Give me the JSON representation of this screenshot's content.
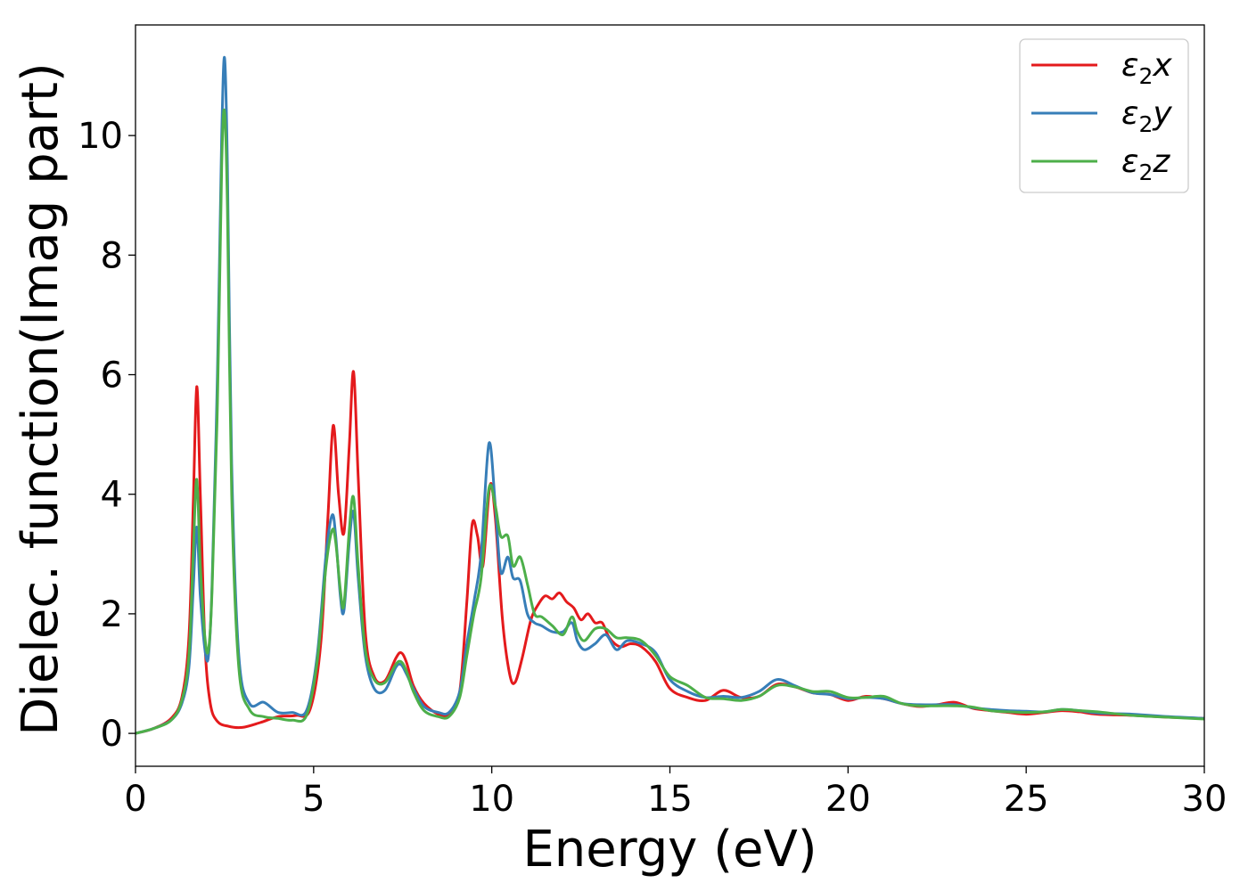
{
  "chart_data": {
    "type": "line",
    "title": "",
    "xlabel": "Energy (eV)",
    "ylabel": "Dielec. function(Imag part)",
    "xlim": [
      0,
      30
    ],
    "ylim": [
      -0.55,
      11.85
    ],
    "xticks": [
      0,
      5,
      10,
      15,
      20,
      25,
      30
    ],
    "yticks": [
      0,
      2,
      4,
      6,
      8,
      10
    ],
    "xtick_labels": [
      "0",
      "5",
      "10",
      "15",
      "20",
      "25",
      "30"
    ],
    "ytick_labels": [
      "0",
      "2",
      "4",
      "6",
      "8",
      "10"
    ],
    "grid": false,
    "legend": "top-right",
    "series": [
      {
        "name": "ε₂x",
        "legend_base": "ε",
        "legend_sub": "2",
        "legend_suffix": "x",
        "color": "#e41a1c",
        "x": [
          0,
          0.5,
          1.0,
          1.3,
          1.5,
          1.62,
          1.72,
          1.82,
          1.95,
          2.1,
          2.3,
          2.6,
          3.0,
          3.5,
          4.0,
          4.5,
          4.9,
          5.2,
          5.4,
          5.55,
          5.7,
          5.85,
          6.0,
          6.12,
          6.25,
          6.45,
          6.7,
          7.0,
          7.3,
          7.45,
          7.6,
          7.8,
          8.1,
          8.5,
          8.8,
          9.1,
          9.3,
          9.45,
          9.6,
          9.75,
          9.95,
          10.1,
          10.3,
          10.5,
          10.65,
          10.85,
          11.1,
          11.3,
          11.5,
          11.7,
          11.9,
          12.1,
          12.3,
          12.5,
          12.7,
          12.9,
          13.1,
          13.3,
          13.6,
          13.9,
          14.2,
          14.6,
          15.0,
          15.5,
          16.0,
          16.5,
          17.0,
          17.5,
          18.0,
          18.5,
          19.0,
          19.5,
          20.0,
          20.5,
          21.0,
          21.5,
          22.0,
          22.5,
          23.0,
          23.5,
          24.0,
          24.5,
          25.0,
          25.5,
          26.0,
          26.5,
          27.0,
          28.0,
          29.0,
          30.0
        ],
        "y": [
          0,
          0.08,
          0.25,
          0.6,
          1.6,
          3.8,
          5.8,
          4.0,
          1.5,
          0.5,
          0.2,
          0.12,
          0.1,
          0.18,
          0.28,
          0.3,
          0.4,
          1.5,
          3.6,
          5.15,
          4.0,
          3.35,
          4.8,
          6.05,
          4.3,
          1.7,
          0.95,
          0.88,
          1.25,
          1.35,
          1.2,
          0.8,
          0.5,
          0.32,
          0.32,
          0.7,
          2.2,
          3.5,
          3.3,
          2.8,
          4.15,
          3.6,
          1.9,
          1.0,
          0.85,
          1.25,
          1.9,
          2.15,
          2.3,
          2.25,
          2.35,
          2.2,
          2.1,
          1.9,
          2.0,
          1.85,
          1.85,
          1.6,
          1.45,
          1.5,
          1.45,
          1.2,
          0.75,
          0.6,
          0.55,
          0.72,
          0.6,
          0.62,
          0.82,
          0.78,
          0.68,
          0.65,
          0.55,
          0.62,
          0.58,
          0.5,
          0.45,
          0.48,
          0.52,
          0.42,
          0.38,
          0.35,
          0.32,
          0.35,
          0.38,
          0.36,
          0.32,
          0.3,
          0.27,
          0.25
        ]
      },
      {
        "name": "ε₂y",
        "legend_base": "ε",
        "legend_sub": "2",
        "legend_suffix": "y",
        "color": "#377eb8",
        "x": [
          0,
          0.5,
          1.0,
          1.3,
          1.5,
          1.62,
          1.72,
          1.82,
          1.95,
          2.05,
          2.15,
          2.3,
          2.42,
          2.5,
          2.58,
          2.7,
          2.9,
          3.2,
          3.6,
          4.0,
          4.4,
          4.8,
          5.1,
          5.35,
          5.52,
          5.62,
          5.75,
          5.85,
          6.0,
          6.12,
          6.25,
          6.45,
          6.7,
          7.0,
          7.3,
          7.45,
          7.6,
          7.8,
          8.1,
          8.5,
          8.8,
          9.1,
          9.3,
          9.5,
          9.7,
          9.92,
          10.1,
          10.25,
          10.45,
          10.6,
          10.8,
          11.0,
          11.2,
          11.4,
          11.7,
          12.0,
          12.25,
          12.4,
          12.6,
          12.9,
          13.2,
          13.5,
          13.8,
          14.2,
          14.6,
          15.0,
          15.5,
          16.0,
          16.5,
          17.0,
          17.5,
          18.0,
          18.5,
          19.0,
          19.5,
          20.0,
          20.5,
          21.0,
          21.5,
          22.0,
          22.5,
          23.0,
          23.5,
          24.0,
          24.5,
          25.0,
          25.5,
          26.0,
          26.5,
          27.0,
          28.0,
          29.0,
          30.0
        ],
        "y": [
          0,
          0.08,
          0.22,
          0.5,
          1.1,
          2.4,
          3.45,
          2.3,
          1.4,
          1.3,
          2.5,
          6.0,
          10.0,
          11.3,
          9.5,
          4.5,
          1.3,
          0.5,
          0.52,
          0.35,
          0.35,
          0.38,
          1.3,
          3.0,
          3.65,
          3.3,
          2.3,
          2.05,
          3.2,
          3.7,
          2.6,
          1.3,
          0.75,
          0.72,
          1.1,
          1.15,
          1.0,
          0.75,
          0.45,
          0.35,
          0.35,
          0.7,
          1.5,
          2.2,
          3.0,
          4.85,
          3.8,
          2.7,
          2.95,
          2.6,
          2.55,
          2.0,
          1.85,
          1.8,
          1.7,
          1.7,
          1.85,
          1.55,
          1.4,
          1.5,
          1.65,
          1.4,
          1.55,
          1.5,
          1.35,
          0.9,
          0.7,
          0.6,
          0.62,
          0.6,
          0.7,
          0.9,
          0.8,
          0.68,
          0.65,
          0.58,
          0.6,
          0.58,
          0.5,
          0.48,
          0.48,
          0.48,
          0.43,
          0.4,
          0.38,
          0.37,
          0.36,
          0.4,
          0.38,
          0.34,
          0.32,
          0.28,
          0.25
        ]
      },
      {
        "name": "ε₂z",
        "legend_base": "ε",
        "legend_sub": "2",
        "legend_suffix": "z",
        "color": "#4daf4a",
        "x": [
          0,
          0.5,
          1.0,
          1.3,
          1.5,
          1.62,
          1.72,
          1.82,
          1.95,
          2.05,
          2.15,
          2.3,
          2.42,
          2.5,
          2.58,
          2.7,
          2.9,
          3.2,
          3.6,
          4.0,
          4.4,
          4.8,
          5.1,
          5.35,
          5.52,
          5.62,
          5.75,
          5.85,
          6.0,
          6.12,
          6.25,
          6.45,
          6.7,
          7.0,
          7.3,
          7.45,
          7.6,
          7.8,
          8.1,
          8.5,
          8.8,
          9.1,
          9.3,
          9.5,
          9.7,
          9.92,
          10.1,
          10.25,
          10.45,
          10.6,
          10.8,
          11.0,
          11.2,
          11.4,
          11.7,
          12.0,
          12.25,
          12.4,
          12.6,
          12.9,
          13.2,
          13.5,
          13.8,
          14.2,
          14.6,
          15.0,
          15.5,
          16.0,
          16.5,
          17.0,
          17.5,
          18.0,
          18.5,
          19.0,
          19.5,
          20.0,
          20.5,
          21.0,
          21.5,
          22.0,
          22.5,
          23.0,
          23.5,
          24.0,
          24.5,
          25.0,
          25.5,
          26.0,
          26.5,
          27.0,
          28.0,
          29.0,
          30.0
        ],
        "y": [
          0,
          0.08,
          0.22,
          0.55,
          1.3,
          3.0,
          4.25,
          2.8,
          1.6,
          1.4,
          2.4,
          5.5,
          9.5,
          10.4,
          8.8,
          4.0,
          1.1,
          0.4,
          0.28,
          0.25,
          0.22,
          0.3,
          1.2,
          2.8,
          3.4,
          3.2,
          2.4,
          2.15,
          3.4,
          3.95,
          2.8,
          1.4,
          0.9,
          0.85,
          1.15,
          1.2,
          1.05,
          0.7,
          0.38,
          0.28,
          0.28,
          0.6,
          1.3,
          2.0,
          2.6,
          4.1,
          3.8,
          3.3,
          3.3,
          2.8,
          2.95,
          2.5,
          2.0,
          1.95,
          1.8,
          1.65,
          1.95,
          1.7,
          1.55,
          1.75,
          1.75,
          1.6,
          1.6,
          1.55,
          1.3,
          0.95,
          0.8,
          0.6,
          0.58,
          0.55,
          0.62,
          0.8,
          0.78,
          0.7,
          0.7,
          0.6,
          0.6,
          0.62,
          0.5,
          0.46,
          0.46,
          0.46,
          0.44,
          0.38,
          0.36,
          0.35,
          0.36,
          0.4,
          0.38,
          0.36,
          0.3,
          0.27,
          0.24
        ]
      }
    ]
  }
}
